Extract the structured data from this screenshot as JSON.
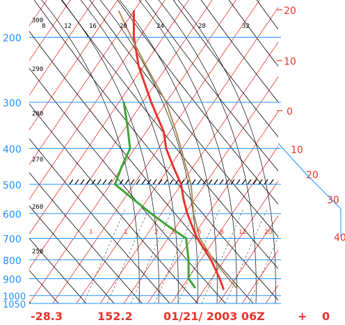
{
  "chart_data": {
    "type": "line",
    "title": "",
    "xlabel": "",
    "ylabel": "",
    "y_scale": "log-pressure",
    "ylim": [
      1050,
      170
    ],
    "pressure_ticks": [
      "200",
      "300",
      "400",
      "500",
      "600",
      "700",
      "800",
      "900",
      "1000",
      "1050"
    ],
    "temperature_ticks": [
      "20",
      "10",
      "0",
      "10",
      "20",
      "30",
      "40"
    ],
    "potential_temperature_labels": [
      "300",
      "290",
      "280",
      "270",
      "260",
      "250"
    ],
    "mixing_ratio_labels": [
      "1",
      "1",
      "2",
      "3",
      "5",
      "8",
      "12",
      "20"
    ],
    "wet_bulb_labels": [
      "8",
      "12",
      "16",
      "20",
      "24",
      "28",
      "32"
    ],
    "series": [
      {
        "name": "",
        "color": "#e8332a",
        "points": [
          {
            "p": 170,
            "x": 0.42
          },
          {
            "p": 200,
            "x": 0.42
          },
          {
            "p": 240,
            "x": 0.44
          },
          {
            "p": 300,
            "x": 0.49
          },
          {
            "p": 360,
            "x": 0.54
          },
          {
            "p": 400,
            "x": 0.55
          },
          {
            "p": 450,
            "x": 0.58
          },
          {
            "p": 500,
            "x": 0.61
          },
          {
            "p": 550,
            "x": 0.62
          },
          {
            "p": 600,
            "x": 0.635
          },
          {
            "p": 650,
            "x": 0.655
          },
          {
            "p": 700,
            "x": 0.675
          },
          {
            "p": 800,
            "x": 0.73
          },
          {
            "p": 900,
            "x": 0.765
          },
          {
            "p": 960,
            "x": 0.78
          }
        ]
      },
      {
        "name": "",
        "color": "#3aa535",
        "points": [
          {
            "p": 300,
            "x": 0.38
          },
          {
            "p": 350,
            "x": 0.395
          },
          {
            "p": 400,
            "x": 0.405
          },
          {
            "p": 450,
            "x": 0.37
          },
          {
            "p": 500,
            "x": 0.345
          },
          {
            "p": 550,
            "x": 0.42
          },
          {
            "p": 600,
            "x": 0.49
          },
          {
            "p": 650,
            "x": 0.56
          },
          {
            "p": 700,
            "x": 0.63
          },
          {
            "p": 800,
            "x": 0.64
          },
          {
            "p": 900,
            "x": 0.64
          },
          {
            "p": 950,
            "x": 0.665
          }
        ]
      },
      {
        "name": "",
        "color": "#a88a55",
        "points": [
          {
            "p": 170,
            "x": 0.36
          },
          {
            "p": 200,
            "x": 0.41
          },
          {
            "p": 240,
            "x": 0.47
          },
          {
            "p": 300,
            "x": 0.55
          },
          {
            "p": 360,
            "x": 0.59
          },
          {
            "p": 400,
            "x": 0.61
          },
          {
            "p": 450,
            "x": 0.63
          },
          {
            "p": 500,
            "x": 0.65
          },
          {
            "p": 600,
            "x": 0.66
          },
          {
            "p": 700,
            "x": 0.685
          },
          {
            "p": 800,
            "x": 0.74
          },
          {
            "p": 900,
            "x": 0.8
          },
          {
            "p": 950,
            "x": 0.83
          }
        ]
      }
    ],
    "annotation_hatched_level": 500,
    "grid": true
  },
  "footer": {
    "value_left": "-28.3",
    "value_mid": "152.2",
    "datetime": "01/21/ 2003 06Z",
    "plus": "+",
    "value_right": "0"
  },
  "colors": {
    "isobar": "#1e90ff",
    "isotherm": "#e8332a",
    "dry_adiabat": "#000000",
    "footer_text": "#e8332a",
    "pressure_label": "#1e90ff"
  }
}
